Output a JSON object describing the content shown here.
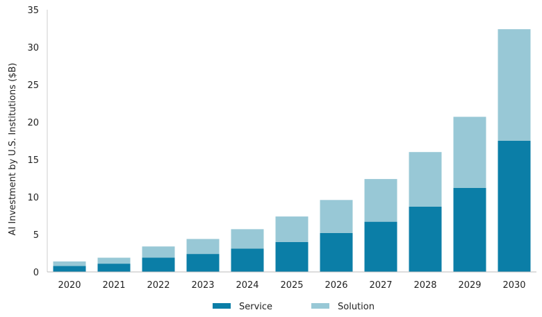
{
  "chart_data": {
    "type": "bar",
    "stacked": true,
    "title": "",
    "xlabel": "",
    "ylabel": "AI Investment by U.S. Institutions ($B)",
    "ylim": [
      0,
      35
    ],
    "yticks": [
      0,
      5,
      10,
      15,
      20,
      25,
      30,
      35
    ],
    "grid": false,
    "legend": "bottom-center",
    "categories": [
      "2020",
      "2021",
      "2022",
      "2023",
      "2024",
      "2025",
      "2026",
      "2027",
      "2028",
      "2029",
      "2030"
    ],
    "series": [
      {
        "name": "Service",
        "color": "#0b7ea7",
        "values": [
          0.8,
          1.1,
          1.9,
          2.4,
          3.1,
          4.0,
          5.2,
          6.7,
          8.7,
          11.2,
          17.5
        ]
      },
      {
        "name": "Solution",
        "color": "#98c8d6",
        "values": [
          0.6,
          0.8,
          1.5,
          2.0,
          2.6,
          3.4,
          4.4,
          5.7,
          7.3,
          9.5,
          14.9
        ]
      }
    ]
  }
}
